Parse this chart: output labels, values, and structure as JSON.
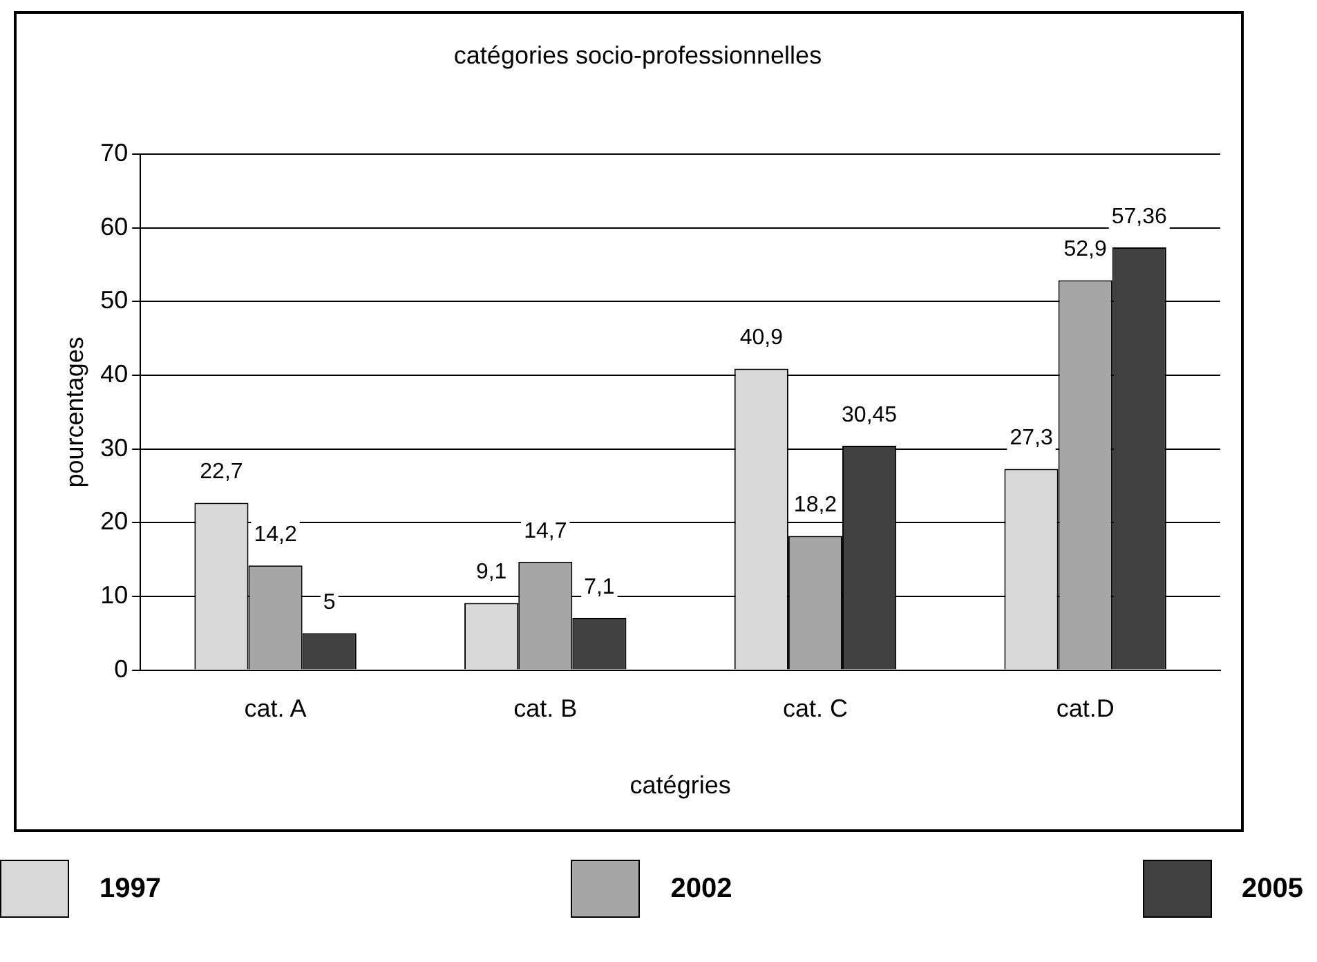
{
  "chart_data": {
    "type": "bar",
    "title": "catégories socio-professionnelles",
    "xlabel": "catégries",
    "ylabel": "pourcentages",
    "categories": [
      "cat. A",
      "cat. B",
      "cat. C",
      "cat.D"
    ],
    "series": [
      {
        "name": "1997",
        "color": "#d9d9d9",
        "values": [
          22.7,
          9.1,
          40.9,
          27.3
        ],
        "value_labels": [
          "22,7",
          "9,1",
          "40,9",
          "27,3"
        ]
      },
      {
        "name": "2002",
        "color": "#a6a6a6",
        "values": [
          14.2,
          14.7,
          18.2,
          52.9
        ],
        "value_labels": [
          "14,2",
          "14,7",
          "18,2",
          "52,9"
        ]
      },
      {
        "name": "2005",
        "color": "#404040",
        "values": [
          5,
          7.1,
          30.45,
          57.36
        ],
        "value_labels": [
          "5",
          "7,1",
          "30,45",
          "57,36"
        ]
      }
    ],
    "ylim": [
      0,
      70
    ],
    "yticks": [
      0,
      10,
      20,
      30,
      40,
      50,
      60,
      70
    ],
    "grid": "y",
    "legend": "bottom"
  }
}
